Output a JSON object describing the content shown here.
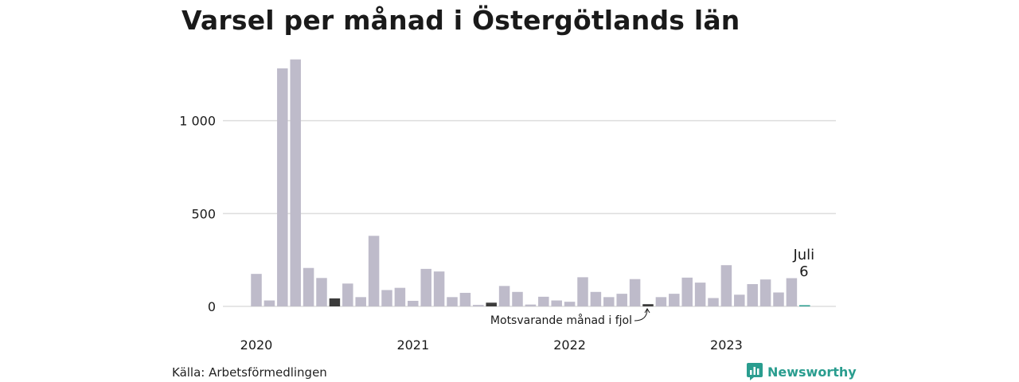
{
  "title": "Varsel per månad i Östergötlands län",
  "source": "Källa: Arbetsförmedlingen",
  "brand": "Newsworthy",
  "colors": {
    "bar": "#bebbca",
    "highlight": "#3c3c3c",
    "current": "#2a9d8f",
    "grid": "#dddddd",
    "brand": "#2a9d8f"
  },
  "chart_data": {
    "type": "bar",
    "ylim": [
      0,
      1350
    ],
    "yticks": [
      {
        "value": 0,
        "label": "0"
      },
      {
        "value": 500,
        "label": "500"
      },
      {
        "value": 1000,
        "label": "1 000"
      }
    ],
    "year_labels": [
      {
        "index": 0,
        "label": "2020"
      },
      {
        "index": 12,
        "label": "2021"
      },
      {
        "index": 24,
        "label": "2022"
      },
      {
        "index": 36,
        "label": "2023"
      }
    ],
    "values": [
      175,
      32,
      1282,
      1330,
      207,
      153,
      43,
      123,
      50,
      380,
      88,
      100,
      30,
      202,
      188,
      50,
      73,
      8,
      20,
      110,
      78,
      10,
      52,
      32,
      25,
      157,
      78,
      50,
      68,
      147,
      12,
      50,
      68,
      155,
      128,
      45,
      222,
      63,
      120,
      145,
      75,
      152,
      6
    ],
    "highlight_indices": [
      6,
      18,
      30
    ],
    "current_index": 42,
    "current_label": "Juli",
    "current_value_label": "6",
    "annotation": "Motsvarande månad i fjol"
  }
}
